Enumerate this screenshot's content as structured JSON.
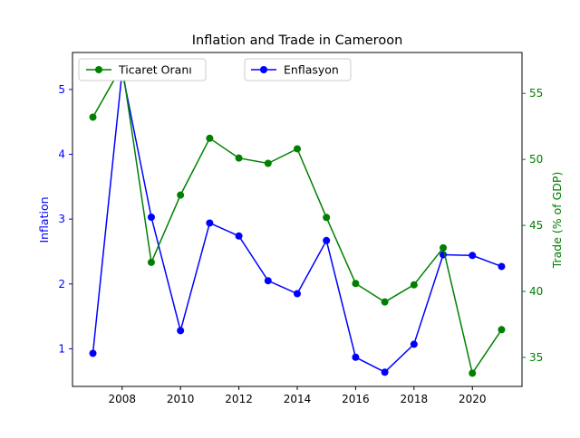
{
  "chart_data": {
    "type": "line",
    "title": "Inflation and Trade in Cameroon",
    "xlabel": "",
    "ylabel_left": "Inflation",
    "ylabel_right": "Trade (% of GDP)",
    "x": [
      2007,
      2008,
      2009,
      2010,
      2011,
      2012,
      2013,
      2014,
      2015,
      2016,
      2017,
      2018,
      2019,
      2020,
      2021
    ],
    "xticks": [
      "2008",
      "2010",
      "2012",
      "2014",
      "2016",
      "2018",
      "2020"
    ],
    "xtick_values": [
      2008,
      2010,
      2012,
      2014,
      2016,
      2018,
      2020
    ],
    "xlim": [
      2006.3,
      2021.7
    ],
    "yticks_left": [
      "1",
      "2",
      "3",
      "4",
      "5"
    ],
    "ytick_values_left": [
      1,
      2,
      3,
      4,
      5
    ],
    "ylim_left": [
      0.42,
      5.57
    ],
    "yticks_right": [
      "35",
      "40",
      "45",
      "50",
      "55"
    ],
    "ytick_values_right": [
      35,
      40,
      45,
      50,
      55
    ],
    "ylim_right": [
      32.8,
      58.1
    ],
    "series": [
      {
        "name": "Enflasyon",
        "axis": "left",
        "color": "#0000ff",
        "values": [
          0.93,
          5.28,
          3.03,
          1.28,
          2.94,
          2.74,
          2.05,
          1.85,
          2.67,
          0.87,
          0.64,
          1.07,
          2.45,
          2.44,
          2.27
        ]
      },
      {
        "name": "Ticaret Oranı",
        "axis": "right",
        "color": "#008000",
        "values": [
          53.2,
          57.1,
          42.2,
          47.3,
          51.6,
          50.1,
          49.7,
          50.8,
          45.6,
          40.6,
          39.2,
          40.5,
          43.3,
          33.8,
          37.1
        ]
      }
    ],
    "grid": false,
    "legend": [
      {
        "label": "Ticaret Oranı",
        "placement": "upper-left"
      },
      {
        "label": "Enflasyon",
        "placement": "upper-center"
      }
    ]
  }
}
